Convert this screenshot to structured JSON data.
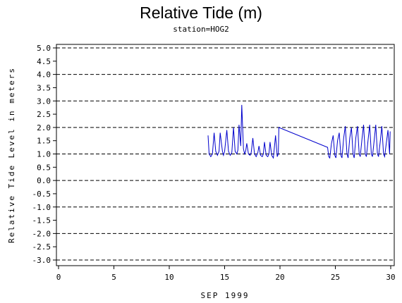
{
  "chart_data": {
    "type": "line",
    "title": "Relative Tide (m)",
    "subtitle": "station=HOG2",
    "xlabel": "SEP 1999",
    "ylabel": "Relative Tide Level in meters",
    "xlim": [
      0,
      30
    ],
    "ylim": [
      -3.0,
      5.0
    ],
    "xticks": [
      0,
      5,
      10,
      15,
      20,
      25,
      30
    ],
    "yticks": [
      -3.0,
      -2.5,
      -2.0,
      -1.5,
      -1.0,
      -0.5,
      0.0,
      0.5,
      1.0,
      1.5,
      2.0,
      2.5,
      3.0,
      3.5,
      4.0,
      4.5,
      5.0
    ],
    "grid_y_dashed": [
      -3.0,
      -2.0,
      -1.0,
      0.0,
      1.0,
      2.0,
      3.0,
      4.0,
      5.0
    ],
    "line_color": "#0000cc",
    "series": [
      {
        "values": [
          [
            13.5,
            1.7
          ],
          [
            13.6,
            1.0
          ],
          [
            13.75,
            0.9
          ],
          [
            13.9,
            1.0
          ],
          [
            14.05,
            1.8
          ],
          [
            14.2,
            1.1
          ],
          [
            14.35,
            0.95
          ],
          [
            14.5,
            1.1
          ],
          [
            14.6,
            1.8
          ],
          [
            14.8,
            1.1
          ],
          [
            14.9,
            0.95
          ],
          [
            15.0,
            1.1
          ],
          [
            15.2,
            1.9
          ],
          [
            15.35,
            1.1
          ],
          [
            15.5,
            0.95
          ],
          [
            15.65,
            1.05
          ],
          [
            15.8,
            2.0
          ],
          [
            15.95,
            1.1
          ],
          [
            16.1,
            1.0
          ],
          [
            16.2,
            1.15
          ],
          [
            16.3,
            2.1
          ],
          [
            16.45,
            1.3
          ],
          [
            16.55,
            2.85
          ],
          [
            16.7,
            1.2
          ],
          [
            16.8,
            1.0
          ],
          [
            16.9,
            1.1
          ],
          [
            17.0,
            1.4
          ],
          [
            17.15,
            1.0
          ],
          [
            17.3,
            0.95
          ],
          [
            17.4,
            1.05
          ],
          [
            17.55,
            1.6
          ],
          [
            17.7,
            1.0
          ],
          [
            17.85,
            0.9
          ],
          [
            18.0,
            1.05
          ],
          [
            18.1,
            1.3
          ],
          [
            18.25,
            0.95
          ],
          [
            18.4,
            0.9
          ],
          [
            18.5,
            1.0
          ],
          [
            18.6,
            1.45
          ],
          [
            18.75,
            0.95
          ],
          [
            18.9,
            0.9
          ],
          [
            19.0,
            1.0
          ],
          [
            19.1,
            1.45
          ],
          [
            19.25,
            0.95
          ],
          [
            19.4,
            0.85
          ],
          [
            19.6,
            1.7
          ],
          [
            19.75,
            0.9
          ],
          [
            19.85,
            1.0
          ],
          [
            19.9,
            2.0
          ],
          [
            24.3,
            1.25
          ],
          [
            24.4,
            0.9
          ],
          [
            24.5,
            0.85
          ],
          [
            24.65,
            1.4
          ],
          [
            24.8,
            1.7
          ],
          [
            24.95,
            0.95
          ],
          [
            25.05,
            0.85
          ],
          [
            25.2,
            1.5
          ],
          [
            25.35,
            1.8
          ],
          [
            25.5,
            0.95
          ],
          [
            25.6,
            0.85
          ],
          [
            25.75,
            1.6
          ],
          [
            25.9,
            2.05
          ],
          [
            26.05,
            1.0
          ],
          [
            26.15,
            0.85
          ],
          [
            26.3,
            1.6
          ],
          [
            26.45,
            2.0
          ],
          [
            26.6,
            1.0
          ],
          [
            26.7,
            0.85
          ],
          [
            26.85,
            1.6
          ],
          [
            27.0,
            2.05
          ],
          [
            27.15,
            1.0
          ],
          [
            27.25,
            0.9
          ],
          [
            27.4,
            1.55
          ],
          [
            27.55,
            2.1
          ],
          [
            27.7,
            1.0
          ],
          [
            27.8,
            0.9
          ],
          [
            27.95,
            1.5
          ],
          [
            28.1,
            2.1
          ],
          [
            28.25,
            1.0
          ],
          [
            28.35,
            0.9
          ],
          [
            28.5,
            1.5
          ],
          [
            28.65,
            2.1
          ],
          [
            28.8,
            1.0
          ],
          [
            28.9,
            0.9
          ],
          [
            29.05,
            1.45
          ],
          [
            29.2,
            2.05
          ],
          [
            29.35,
            1.0
          ],
          [
            29.45,
            0.9
          ],
          [
            29.6,
            1.4
          ],
          [
            29.75,
            1.9
          ],
          [
            29.9,
            1.0
          ],
          [
            29.95,
            1.85
          ]
        ]
      }
    ]
  }
}
